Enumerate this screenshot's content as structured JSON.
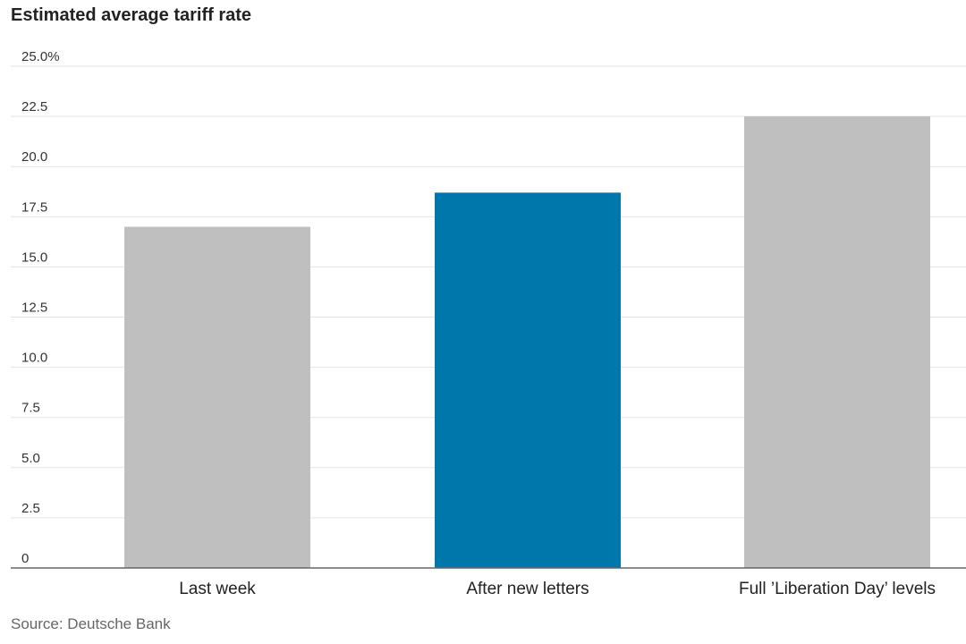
{
  "title": "Estimated average tariff rate",
  "source": "Source: Deutsche Bank",
  "colors": {
    "highlight": "#0077aa",
    "default": "#bfbfbf",
    "grid": "#e3e3e3",
    "axis": "#666666"
  },
  "chart_data": {
    "type": "bar",
    "categories": [
      "Last week",
      "After new letters",
      "Full ’Liberation Day’ levels"
    ],
    "values": [
      17.0,
      18.7,
      22.5
    ],
    "highlight_index": 1,
    "ylim": [
      0,
      25
    ],
    "yticks": [
      0,
      2.5,
      5,
      7.5,
      10,
      12.5,
      15,
      17.5,
      20,
      22.5,
      25
    ],
    "ytick_labels": [
      "0",
      "2.5",
      "5.0",
      "7.5",
      "10.0",
      "12.5",
      "15.0",
      "17.5",
      "20.0",
      "22.5",
      "25.0%"
    ],
    "grid": true,
    "legend": "none",
    "xlabel": "",
    "ylabel": ""
  }
}
